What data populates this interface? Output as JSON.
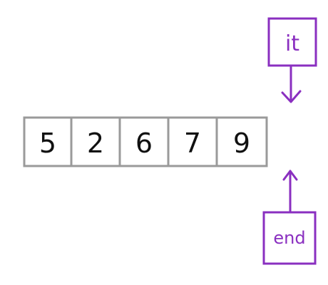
{
  "diagram": {
    "array": {
      "values": [
        "5",
        "2",
        "6",
        "7",
        "9"
      ]
    },
    "it_pointer": {
      "label": "it"
    },
    "end_pointer": {
      "label": "end"
    },
    "colors": {
      "array_border": "#9a9a9a",
      "pointer": "#8a2fc0",
      "digit": "#111111"
    }
  }
}
